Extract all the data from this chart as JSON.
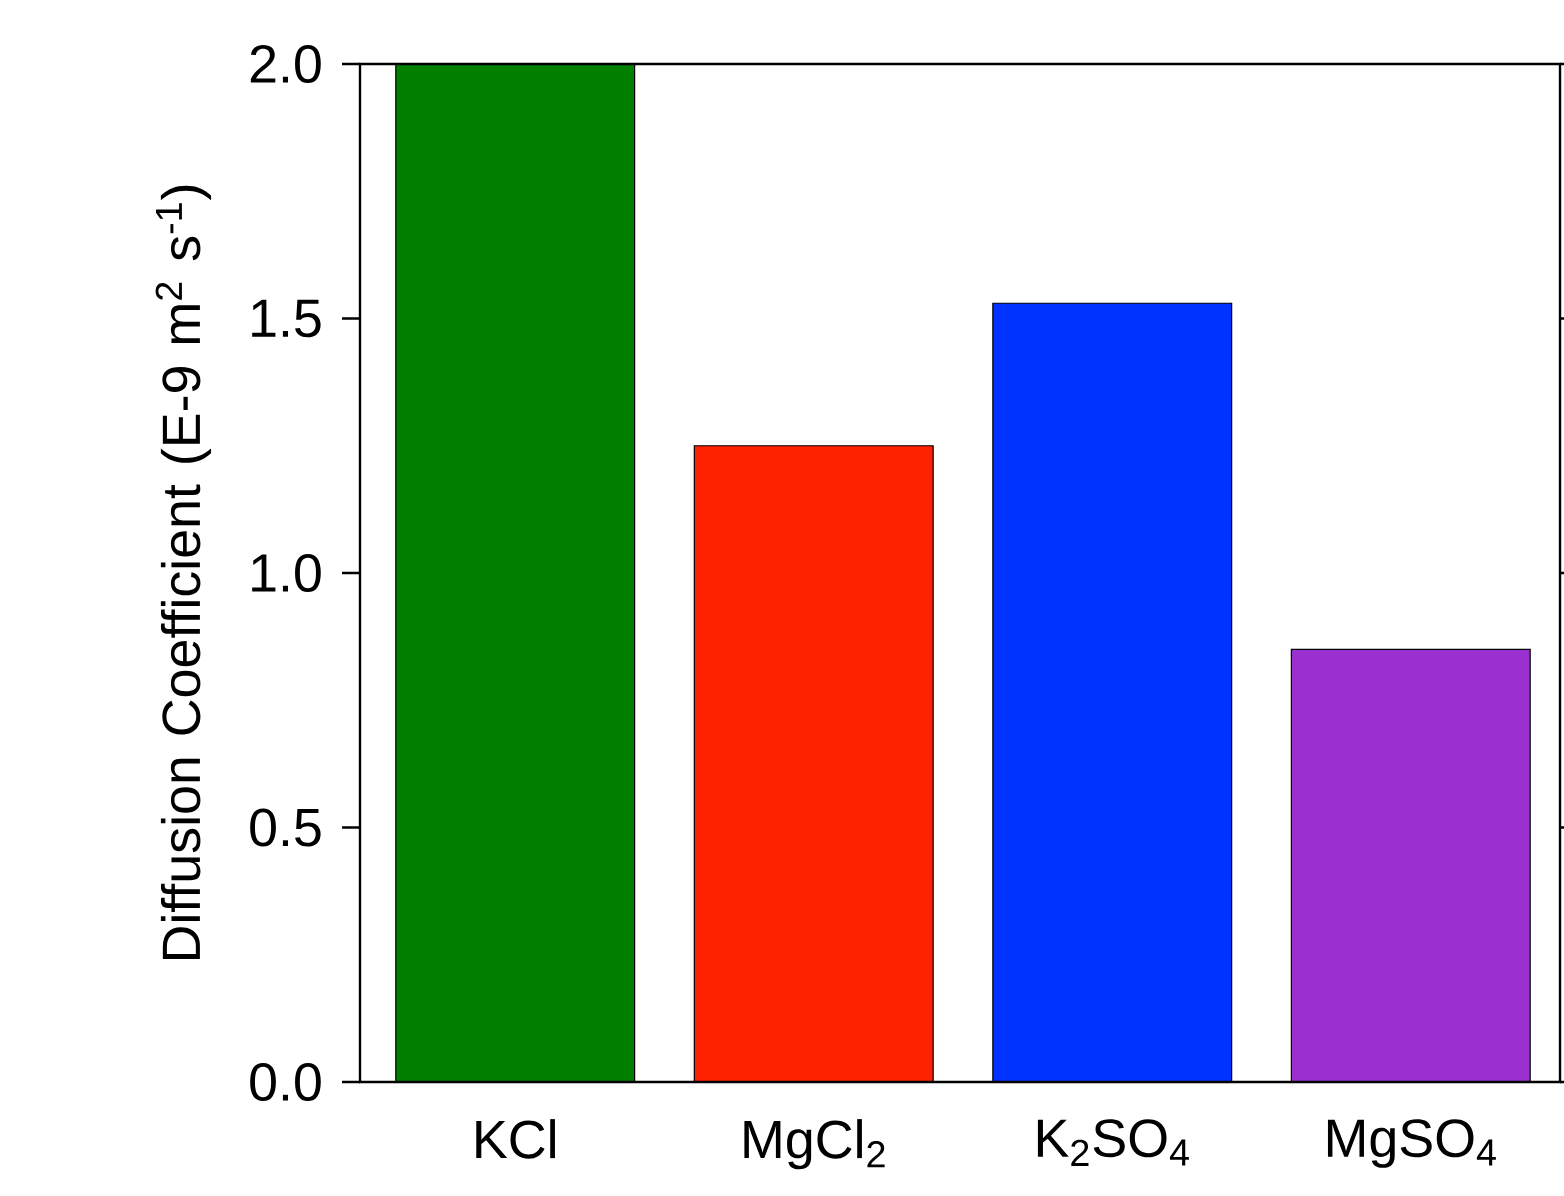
{
  "chart_data": {
    "type": "bar",
    "ylabel": "Diffusion Coefficient (E-9 m$^{2}$ s$^{-1}$)",
    "categories": [
      "KCl",
      "MgCl$_{2}$",
      "K$_{2}$SO$_{4}$",
      "MgSO$_{4}$"
    ],
    "values": [
      2.0,
      1.25,
      1.53,
      0.85
    ],
    "colors": [
      "#007f00",
      "#ff2200",
      "#0033ff",
      "#9b30d0"
    ],
    "ylim": [
      0,
      2.0
    ],
    "yticks": [
      {
        "value": 0,
        "label": "0.0"
      },
      0.5,
      {
        "value": 1,
        "label": "1.0"
      },
      1.5,
      {
        "value": 2,
        "label": "2.0"
      }
    ]
  }
}
